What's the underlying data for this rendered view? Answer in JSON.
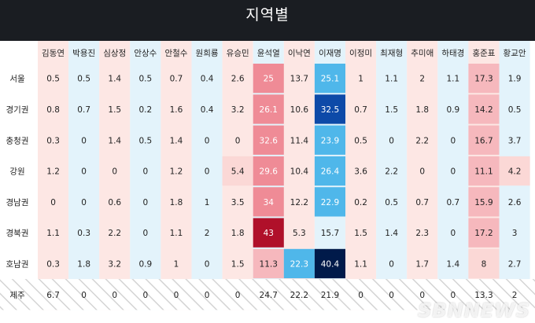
{
  "title": "지역별",
  "watermark": "SBNNEWS",
  "chart_data": {
    "type": "heatmap",
    "columns": [
      "김동연",
      "박용진",
      "심상정",
      "안상수",
      "안철수",
      "원희룡",
      "유승민",
      "윤석열",
      "이낙연",
      "이재명",
      "이정미",
      "최재형",
      "추미애",
      "하태경",
      "홍준표",
      "황교안"
    ],
    "rows": [
      "서울",
      "경기권",
      "충청권",
      "강원",
      "경남권",
      "경북권",
      "호남권",
      "제주"
    ],
    "values": [
      [
        0.5,
        0.5,
        1.4,
        0.5,
        0.7,
        0.4,
        2.6,
        25,
        13.7,
        25.1,
        1,
        1.1,
        2,
        1.1,
        17.3,
        1.9
      ],
      [
        0.8,
        0.7,
        1.5,
        0.2,
        1.6,
        0.4,
        3.2,
        26.1,
        10.6,
        32.5,
        0.7,
        1.5,
        1.8,
        0.9,
        14.2,
        0.5
      ],
      [
        0.3,
        0,
        1.4,
        0.5,
        1.4,
        0,
        0,
        32.6,
        11.4,
        23.9,
        0.5,
        0,
        2.2,
        0,
        16.7,
        3.7
      ],
      [
        1.2,
        0,
        0,
        0,
        1.2,
        0,
        5.4,
        29.6,
        10.4,
        26.4,
        3.6,
        2.2,
        0,
        0,
        11.1,
        4.2
      ],
      [
        0,
        0,
        0.6,
        0,
        1.8,
        1,
        3.5,
        34,
        12.2,
        22.9,
        0.2,
        0.5,
        0.7,
        0.7,
        15.9,
        2.6
      ],
      [
        1.1,
        0.3,
        2.2,
        0,
        1.1,
        2,
        1.8,
        43,
        5.3,
        15.7,
        1.5,
        1.4,
        2.3,
        0,
        17.2,
        3
      ],
      [
        0.3,
        1.8,
        3.2,
        0.9,
        1,
        0,
        1.5,
        11.3,
        22.3,
        40.4,
        1.1,
        0,
        1.7,
        1.4,
        8,
        2.7
      ],
      [
        6.7,
        0,
        0,
        0,
        0,
        0,
        0,
        24.7,
        22.2,
        21.9,
        0,
        0,
        0,
        0,
        13.3,
        2
      ]
    ],
    "hatched_rows": [
      "제주"
    ],
    "colors": {
      "pale_red": "#fde7e4",
      "pale_blue": "#e3f3fb",
      "mid_pink": "#f6b8bd",
      "strong_pink": "#ef8b96",
      "deep_red": "#b0102a",
      "mid_blue": "#4fb7ea",
      "deep_blue": "#0d4aa8",
      "navy": "#001a4a"
    }
  }
}
